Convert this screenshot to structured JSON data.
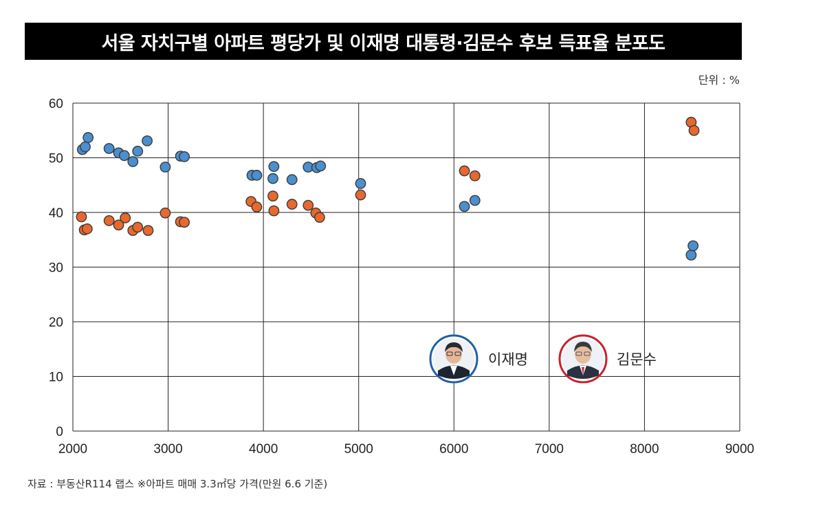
{
  "title": "서울 자치구별 아파트 평당가 및 이재명 대통령·김문수 후보 득표율 분포도",
  "unit_label": "단위 : %",
  "source": "자료 : 부동산R114 랩스 ※아파트 매매 3.3㎡당 가격(만원 6.6 기준)",
  "colors": {
    "lee": "#4a8fcf",
    "kim": "#e8682e",
    "lee_ring": "#1f5fa8",
    "kim_ring": "#c8202a"
  },
  "legend": [
    {
      "name": "이재명",
      "color": "#4a8fcf",
      "icon": "avatar-icon"
    },
    {
      "name": "김문수",
      "color": "#e8682e",
      "icon": "avatar-icon"
    }
  ],
  "chart_data": {
    "type": "scatter",
    "xlim": [
      2000,
      9000
    ],
    "ylim": [
      0,
      60
    ],
    "xticks": [
      2000,
      3000,
      4000,
      5000,
      6000,
      7000,
      8000,
      9000
    ],
    "yticks": [
      0,
      10,
      20,
      30,
      40,
      50,
      60
    ],
    "grid": true,
    "series": [
      {
        "name": "이재명",
        "color": "#4a8fcf",
        "points": [
          [
            2100,
            51.5
          ],
          [
            2130,
            52.0
          ],
          [
            2160,
            53.7
          ],
          [
            2380,
            51.7
          ],
          [
            2480,
            50.9
          ],
          [
            2540,
            50.4
          ],
          [
            2630,
            49.3
          ],
          [
            2680,
            51.2
          ],
          [
            2780,
            53.1
          ],
          [
            2970,
            48.3
          ],
          [
            3130,
            50.3
          ],
          [
            3170,
            50.2
          ],
          [
            3880,
            46.8
          ],
          [
            3930,
            46.8
          ],
          [
            4100,
            46.2
          ],
          [
            4110,
            48.4
          ],
          [
            4300,
            46.0
          ],
          [
            4470,
            48.3
          ],
          [
            4560,
            48.2
          ],
          [
            4600,
            48.5
          ],
          [
            5020,
            45.3
          ],
          [
            6110,
            41.1
          ],
          [
            6220,
            42.2
          ],
          [
            8490,
            32.2
          ],
          [
            8510,
            33.9
          ]
        ]
      },
      {
        "name": "김문수",
        "color": "#e8682e",
        "points": [
          [
            2090,
            39.2
          ],
          [
            2120,
            36.8
          ],
          [
            2150,
            37.0
          ],
          [
            2380,
            38.5
          ],
          [
            2480,
            37.7
          ],
          [
            2550,
            39.0
          ],
          [
            2630,
            36.7
          ],
          [
            2680,
            37.3
          ],
          [
            2790,
            36.7
          ],
          [
            2970,
            39.9
          ],
          [
            3130,
            38.3
          ],
          [
            3170,
            38.2
          ],
          [
            3870,
            42.0
          ],
          [
            3930,
            41.0
          ],
          [
            4100,
            43.0
          ],
          [
            4110,
            40.3
          ],
          [
            4300,
            41.5
          ],
          [
            4470,
            41.3
          ],
          [
            4550,
            39.9
          ],
          [
            4590,
            39.1
          ],
          [
            5020,
            43.2
          ],
          [
            6110,
            47.6
          ],
          [
            6220,
            46.7
          ],
          [
            8490,
            56.5
          ],
          [
            8520,
            55.0
          ]
        ]
      }
    ]
  }
}
